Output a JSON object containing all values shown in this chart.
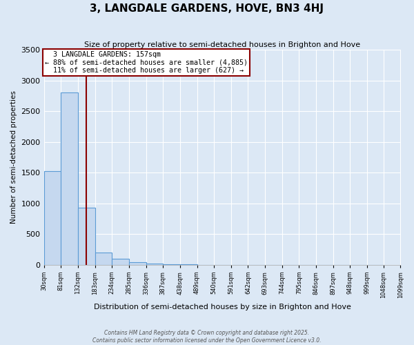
{
  "title": "3, LANGDALE GARDENS, HOVE, BN3 4HJ",
  "subtitle": "Size of property relative to semi-detached houses in Brighton and Hove",
  "xlabel": "Distribution of semi-detached houses by size in Brighton and Hove",
  "ylabel": "Number of semi-detached properties",
  "property_size": 157,
  "property_label": "3 LANGDALE GARDENS: 157sqm",
  "pct_smaller": 88,
  "pct_larger": 11,
  "count_smaller": 4885,
  "count_larger": 627,
  "bin_edges": [
    30,
    81,
    132,
    183,
    234,
    285,
    336,
    387,
    438,
    489,
    540,
    591,
    642,
    693,
    744,
    795,
    846,
    897,
    948,
    999,
    1048
  ],
  "bar_values": [
    1520,
    2800,
    930,
    200,
    95,
    40,
    20,
    5,
    2,
    1,
    0,
    0,
    0,
    0,
    0,
    0,
    0,
    0,
    0,
    0
  ],
  "bar_color": "#c5d8ef",
  "bar_edge_color": "#5b9bd5",
  "vline_color": "#8b0000",
  "vline_x": 157,
  "annotation_box_color": "#8b0000",
  "ylim": [
    0,
    3500
  ],
  "yticks": [
    0,
    500,
    1000,
    1500,
    2000,
    2500,
    3000,
    3500
  ],
  "background_color": "#dce8f5",
  "grid_color": "#ffffff",
  "footer_line1": "Contains HM Land Registry data © Crown copyright and database right 2025.",
  "footer_line2": "Contains public sector information licensed under the Open Government Licence v3.0."
}
